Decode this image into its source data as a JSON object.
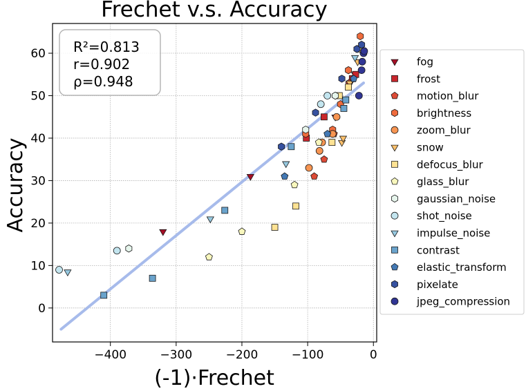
{
  "chart_data": {
    "type": "scatter",
    "title": "Frechet  v.s.  Accuracy",
    "xlabel": "(-1)·Frechet",
    "ylabel": "Accuracy",
    "xlim": [
      -488,
      5
    ],
    "ylim": [
      -8,
      67
    ],
    "xticks": [
      -400,
      -300,
      -200,
      -100,
      0
    ],
    "xtick_labels": [
      "−400",
      "−300",
      "−200",
      "−100",
      "0"
    ],
    "yticks": [
      0,
      10,
      20,
      30,
      40,
      50,
      60
    ],
    "ytick_labels": [
      "0",
      "10",
      "20",
      "30",
      "40",
      "50",
      "60"
    ],
    "grid": true,
    "stats": {
      "r2": "R²=0.813",
      "r": "r=0.902",
      "rho": "ρ=0.948"
    },
    "fit_line": {
      "x": [
        -475,
        -15
      ],
      "y": [
        -5,
        53
      ],
      "color": "#a3b8ea"
    },
    "legend_position": "right, outside",
    "series": [
      {
        "name": "fog",
        "marker": "tri-down",
        "color": "#a50f26",
        "points": [
          [
            -320,
            18
          ],
          [
            -187,
            31
          ],
          [
            -58,
            45
          ],
          [
            -35,
            53
          ],
          [
            -28,
            55
          ]
        ]
      },
      {
        "name": "frost",
        "marker": "square",
        "color": "#c8262c",
        "points": [
          [
            -102,
            40
          ],
          [
            -75,
            45
          ],
          [
            -32,
            54
          ],
          [
            -27,
            55
          ]
        ]
      },
      {
        "name": "motion_blur",
        "marker": "pentagon",
        "color": "#dc4b36",
        "points": [
          [
            -90,
            31
          ],
          [
            -75,
            35
          ],
          [
            -60,
            41
          ],
          [
            -37,
            53
          ]
        ]
      },
      {
        "name": "brightness",
        "marker": "hexagon",
        "color": "#ef6c3d",
        "points": [
          [
            -103,
            41
          ],
          [
            -62,
            42
          ],
          [
            -50,
            48
          ],
          [
            -38,
            56
          ],
          [
            -20,
            64
          ]
        ]
      },
      {
        "name": "zoom_blur",
        "marker": "circle",
        "color": "#f79552",
        "points": [
          [
            -98,
            33
          ],
          [
            -82,
            37
          ],
          [
            -78,
            39
          ],
          [
            -62,
            41
          ],
          [
            -56,
            45
          ]
        ]
      },
      {
        "name": "snow",
        "marker": "tri-down",
        "color": "#fcc06b",
        "points": [
          [
            -48,
            39
          ],
          [
            -46,
            40
          ],
          [
            -36,
            53
          ],
          [
            -24,
            58
          ]
        ]
      },
      {
        "name": "defocus_blur",
        "marker": "square",
        "color": "#fee293",
        "points": [
          [
            -150,
            19
          ],
          [
            -118,
            24
          ],
          [
            -63,
            39
          ],
          [
            -52,
            50
          ],
          [
            -38,
            52
          ],
          [
            -22,
            61
          ]
        ]
      },
      {
        "name": "glass_blur",
        "marker": "pentagon",
        "color": "#f8f7bd",
        "points": [
          [
            -250,
            12
          ],
          [
            -200,
            18
          ],
          [
            -120,
            29
          ],
          [
            -83,
            39
          ]
        ]
      },
      {
        "name": "gaussian_noise",
        "marker": "hexagon",
        "color": "#e6f5ec",
        "points": [
          [
            -372,
            14
          ],
          [
            -103,
            42
          ],
          [
            -58,
            50
          ]
        ]
      },
      {
        "name": "shot_noise",
        "marker": "circle",
        "color": "#c3e5ef",
        "points": [
          [
            -478,
            9
          ],
          [
            -390,
            13.5
          ],
          [
            -80,
            48
          ],
          [
            -70,
            50
          ]
        ]
      },
      {
        "name": "impulse_noise",
        "marker": "tri-down",
        "color": "#97c9e0",
        "points": [
          [
            -465,
            8.5
          ],
          [
            -248,
            21
          ],
          [
            -133,
            34
          ],
          [
            -28,
            59
          ]
        ]
      },
      {
        "name": "contrast",
        "marker": "square",
        "color": "#6aa3cc",
        "points": [
          [
            -410,
            3
          ],
          [
            -336,
            7
          ],
          [
            -226,
            23
          ],
          [
            -125,
            38
          ],
          [
            -45,
            47
          ],
          [
            -42,
            49
          ]
        ]
      },
      {
        "name": "elastic_transform",
        "marker": "pentagon",
        "color": "#4479b4",
        "points": [
          [
            -135,
            31
          ],
          [
            -70,
            41
          ],
          [
            -30,
            54
          ]
        ]
      },
      {
        "name": "pixelate",
        "marker": "hexagon",
        "color": "#3651a0",
        "points": [
          [
            -140,
            38
          ],
          [
            -88,
            46
          ],
          [
            -48,
            54
          ],
          [
            -25,
            61
          ],
          [
            -18,
            62
          ]
        ]
      },
      {
        "name": "jpeg_compression",
        "marker": "circle",
        "color": "#313695",
        "points": [
          [
            -22,
            50
          ],
          [
            -18,
            56
          ],
          [
            -17,
            58
          ],
          [
            -15,
            60
          ],
          [
            -14,
            60.5
          ]
        ]
      }
    ]
  }
}
